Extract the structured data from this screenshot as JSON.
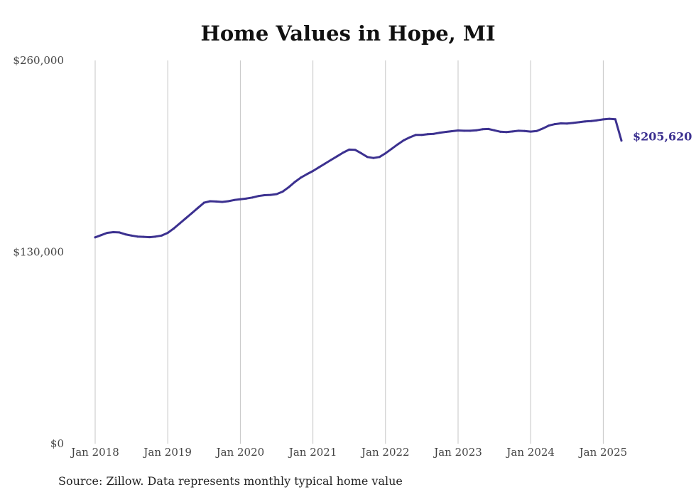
{
  "chart_data": {
    "type": "line",
    "title": "Home Values in Hope, MI",
    "xlabel": "",
    "ylabel": "",
    "ylim": [
      0,
      260000
    ],
    "y_ticks": [
      {
        "value": 0,
        "label": "$0"
      },
      {
        "value": 130000,
        "label": "$130,000"
      },
      {
        "value": 260000,
        "label": "$260,000"
      }
    ],
    "x_ticks": [
      {
        "date": "2018-01",
        "label": "Jan 2018"
      },
      {
        "date": "2019-01",
        "label": "Jan 2019"
      },
      {
        "date": "2020-01",
        "label": "Jan 2020"
      },
      {
        "date": "2021-01",
        "label": "Jan 2021"
      },
      {
        "date": "2022-01",
        "label": "Jan 2022"
      },
      {
        "date": "2023-01",
        "label": "Jan 2023"
      },
      {
        "date": "2024-01",
        "label": "Jan 2024"
      },
      {
        "date": "2025-01",
        "label": "Jan 2025"
      }
    ],
    "grid": "vertical",
    "series": [
      {
        "color": "#3c3190",
        "x": [
          "2018-01",
          "2018-02",
          "2018-03",
          "2018-04",
          "2018-05",
          "2018-06",
          "2018-07",
          "2018-08",
          "2018-09",
          "2018-10",
          "2018-11",
          "2018-12",
          "2019-01",
          "2019-02",
          "2019-03",
          "2019-04",
          "2019-05",
          "2019-06",
          "2019-07",
          "2019-08",
          "2019-09",
          "2019-10",
          "2019-11",
          "2019-12",
          "2020-01",
          "2020-02",
          "2020-03",
          "2020-04",
          "2020-05",
          "2020-06",
          "2020-07",
          "2020-08",
          "2020-09",
          "2020-10",
          "2020-11",
          "2020-12",
          "2021-01",
          "2021-02",
          "2021-03",
          "2021-04",
          "2021-05",
          "2021-06",
          "2021-07",
          "2021-08",
          "2021-09",
          "2021-10",
          "2021-11",
          "2021-12",
          "2022-01",
          "2022-02",
          "2022-03",
          "2022-04",
          "2022-05",
          "2022-06",
          "2022-07",
          "2022-08",
          "2022-09",
          "2022-10",
          "2022-11",
          "2022-12",
          "2023-01",
          "2023-02",
          "2023-03",
          "2023-04",
          "2023-05",
          "2023-06",
          "2023-07",
          "2023-08",
          "2023-09",
          "2023-10",
          "2023-11",
          "2023-12",
          "2024-01",
          "2024-02",
          "2024-03",
          "2024-04",
          "2024-05",
          "2024-06",
          "2024-07",
          "2024-08",
          "2024-09",
          "2024-10",
          "2024-11",
          "2024-12",
          "2025-01",
          "2025-02",
          "2025-03",
          "2025-04"
        ],
        "values": [
          140000,
          141500,
          143000,
          143500,
          143300,
          142000,
          141200,
          140500,
          140300,
          140100,
          140500,
          141200,
          143000,
          146000,
          149500,
          153000,
          156500,
          160000,
          163500,
          164500,
          164300,
          164000,
          164500,
          165300,
          165800,
          166300,
          167000,
          168000,
          168600,
          168800,
          169300,
          171000,
          174000,
          177500,
          180500,
          182800,
          185000,
          187500,
          190000,
          192500,
          195000,
          197500,
          199500,
          199300,
          197000,
          194500,
          193800,
          194500,
          197000,
          200000,
          203000,
          205800,
          207800,
          209500,
          209500,
          210000,
          210200,
          211000,
          211500,
          212000,
          212500,
          212300,
          212300,
          212600,
          213300,
          213500,
          212600,
          211600,
          211400,
          211800,
          212300,
          212100,
          211700,
          212100,
          213800,
          215800,
          216800,
          217300,
          217200,
          217600,
          218100,
          218600,
          218900,
          219400,
          220000,
          220400,
          220100,
          205620
        ],
        "end_label": "$205,620"
      }
    ]
  },
  "source": "Source: Zillow. Data represents monthly typical home value"
}
